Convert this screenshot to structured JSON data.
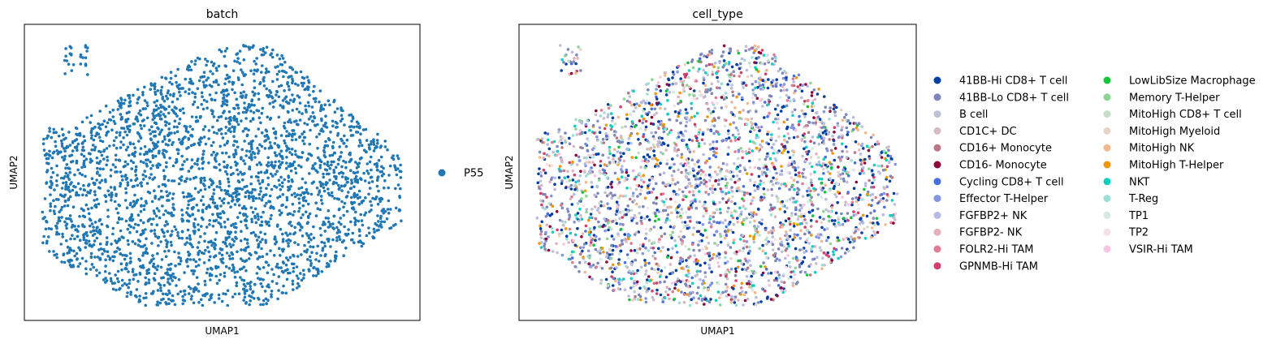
{
  "chart_data": [
    {
      "type": "scatter",
      "title": "batch",
      "xlabel": "UMAP1",
      "ylabel": "UMAP2",
      "ticks": "none",
      "grid": false,
      "legend_position": "right",
      "n_points": 3000,
      "categories": [
        {
          "name": "P55",
          "color": "#1f77b4",
          "share": 1.0
        }
      ]
    },
    {
      "type": "scatter",
      "title": "cell_type",
      "xlabel": "UMAP1",
      "ylabel": "UMAP2",
      "ticks": "none",
      "grid": false,
      "legend_position": "right",
      "legend_columns": 2,
      "n_points": 3000,
      "categories": [
        {
          "name": "41BB-Hi CD8+ T cell",
          "color": "#023fa5",
          "share": 0.14
        },
        {
          "name": "41BB-Lo CD8+ T cell",
          "color": "#7d87b9",
          "share": 0.16
        },
        {
          "name": "B cell",
          "color": "#bec1d4",
          "share": 0.09
        },
        {
          "name": "CD1C+ DC",
          "color": "#d6bcc0",
          "share": 0.03
        },
        {
          "name": "CD16+ Monocyte",
          "color": "#bb7784",
          "share": 0.03
        },
        {
          "name": "CD16- Monocyte",
          "color": "#8e063b",
          "share": 0.03
        },
        {
          "name": "Cycling CD8+ T cell",
          "color": "#4a6fe3",
          "share": 0.04
        },
        {
          "name": "Effector T-Helper",
          "color": "#8595e1",
          "share": 0.06
        },
        {
          "name": "FGFBP2+ NK",
          "color": "#b5bbe3",
          "share": 0.06
        },
        {
          "name": "FGFBP2- NK",
          "color": "#e6afb9",
          "share": 0.03
        },
        {
          "name": "FOLR2-Hi TAM",
          "color": "#e07b91",
          "share": 0.03
        },
        {
          "name": "GPNMB-Hi TAM",
          "color": "#d33f6a",
          "share": 0.04
        },
        {
          "name": "LowLibSize Macrophage",
          "color": "#11c638",
          "share": 0.02
        },
        {
          "name": "Memory T-Helper",
          "color": "#8dd593",
          "share": 0.03
        },
        {
          "name": "MitoHigh CD8+ T cell",
          "color": "#c6dec7",
          "share": 0.03
        },
        {
          "name": "MitoHigh Myeloid",
          "color": "#ead3c6",
          "share": 0.02
        },
        {
          "name": "MitoHigh NK",
          "color": "#f0b98d",
          "share": 0.03
        },
        {
          "name": "MitoHigh T-Helper",
          "color": "#ef9708",
          "share": 0.04
        },
        {
          "name": "NKT",
          "color": "#0fcfc0",
          "share": 0.05
        },
        {
          "name": "T-Reg",
          "color": "#9cded6",
          "share": 0.03
        },
        {
          "name": "TP1",
          "color": "#d5eae7",
          "share": 0.02
        },
        {
          "name": "TP2",
          "color": "#f3e1eb",
          "share": 0.02
        },
        {
          "name": "VSIR-Hi TAM",
          "color": "#f6c4e1",
          "share": 0.02
        }
      ]
    }
  ]
}
